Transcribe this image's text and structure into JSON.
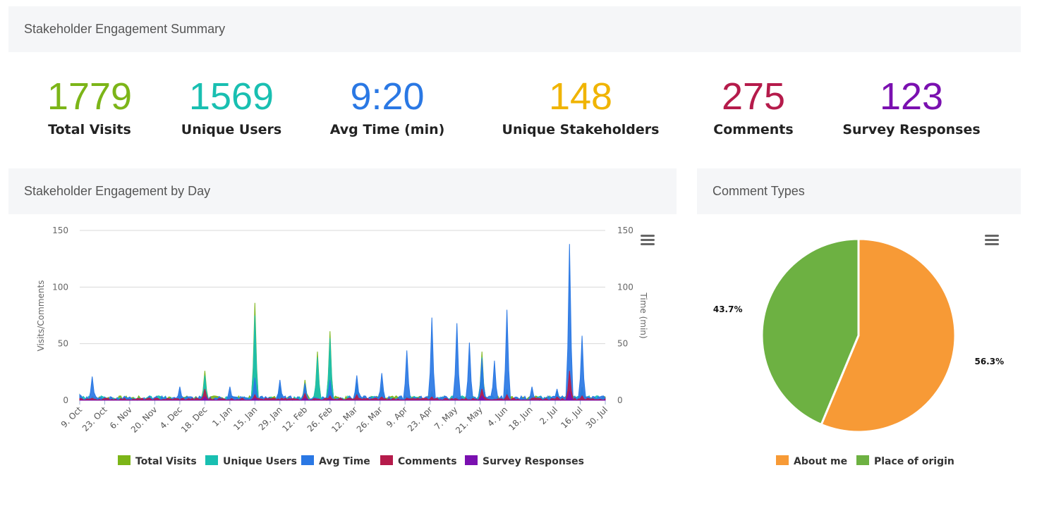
{
  "summary": {
    "title": "Stakeholder Engagement Summary",
    "stats": [
      {
        "value": "1779",
        "label": "Total Visits",
        "color": "#7cb518"
      },
      {
        "value": "1569",
        "label": "Unique Users",
        "color": "#19bfb1"
      },
      {
        "value": "9:20",
        "label": "Avg Time (min)",
        "color": "#2a78e4"
      },
      {
        "value": "148",
        "label": "Unique Stakeholders",
        "color": "#f0b400"
      },
      {
        "value": "275",
        "label": "Comments",
        "color": "#b51b4b"
      },
      {
        "value": "123",
        "label": "Survey Responses",
        "color": "#7a10b0"
      }
    ]
  },
  "engagement_panel": {
    "title": "Stakeholder Engagement by Day",
    "menu_icon": "hamburger-menu-icon"
  },
  "comment_panel": {
    "title": "Comment Types",
    "menu_icon": "hamburger-menu-icon"
  },
  "chart_data": [
    {
      "type": "area",
      "title": "",
      "xlabel": "",
      "ylabel": "Visits/Comments",
      "y2label": "Time (min)",
      "ylim": [
        0,
        150
      ],
      "y2lim": [
        0,
        150
      ],
      "yticks": [
        0,
        50,
        100,
        150
      ],
      "grid": true,
      "legend": "bottom",
      "x_tick_labels": [
        "9. Oct",
        "23. Oct",
        "6. Nov",
        "20. Nov",
        "4. Dec",
        "18. Dec",
        "1. Jan",
        "15. Jan",
        "29. Jan",
        "12. Feb",
        "26. Feb",
        "12. Mar",
        "26. Mar",
        "9. Apr",
        "23. Apr",
        "7. May",
        "21. May",
        "4. Jun",
        "18. Jun",
        "2. Jul",
        "16. Jul",
        "30. Jul"
      ],
      "series": [
        {
          "name": "Total Visits",
          "color": "#7cb518",
          "points": [
            [
              "9. Oct",
              5
            ],
            [
              "23. Oct",
              3
            ],
            [
              "18. Dec",
              26
            ],
            [
              "1. Jan",
              4
            ],
            [
              "15. Jan",
              86
            ],
            [
              "29. Jan",
              12
            ],
            [
              "12. Feb",
              18
            ],
            [
              "19. Feb",
              43
            ],
            [
              "26. Feb",
              61
            ],
            [
              "12. Mar",
              15
            ],
            [
              "26. Mar",
              12
            ],
            [
              "23. Apr",
              8
            ],
            [
              "21. May",
              43
            ],
            [
              "4. Jun",
              10
            ],
            [
              "2. Jul",
              8
            ],
            [
              "16. Jul",
              12
            ],
            [
              "30. Jul",
              6
            ]
          ]
        },
        {
          "name": "Unique Users",
          "color": "#19bfb1",
          "points": [
            [
              "9. Oct",
              4
            ],
            [
              "23. Oct",
              2
            ],
            [
              "18. Dec",
              22
            ],
            [
              "1. Jan",
              3
            ],
            [
              "15. Jan",
              75
            ],
            [
              "29. Jan",
              10
            ],
            [
              "12. Feb",
              15
            ],
            [
              "19. Feb",
              38
            ],
            [
              "26. Feb",
              55
            ],
            [
              "12. Mar",
              13
            ],
            [
              "26. Mar",
              10
            ],
            [
              "23. Apr",
              7
            ],
            [
              "21. May",
              38
            ],
            [
              "4. Jun",
              9
            ],
            [
              "2. Jul",
              7
            ],
            [
              "16. Jul",
              10
            ],
            [
              "30. Jul",
              5
            ]
          ]
        },
        {
          "name": "Avg Time",
          "color": "#2a78e4",
          "points": [
            [
              "9. Oct",
              5
            ],
            [
              "16. Oct",
              21
            ],
            [
              "4. Dec",
              12
            ],
            [
              "1. Jan",
              12
            ],
            [
              "15. Jan",
              20
            ],
            [
              "29. Jan",
              18
            ],
            [
              "12. Feb",
              15
            ],
            [
              "26. Feb",
              18
            ],
            [
              "12. Mar",
              22
            ],
            [
              "26. Mar",
              24
            ],
            [
              "9. Apr",
              44
            ],
            [
              "23. Apr",
              73
            ],
            [
              "7. May",
              68
            ],
            [
              "14. May",
              51
            ],
            [
              "21. May",
              37
            ],
            [
              "28. May",
              35
            ],
            [
              "4. Jun",
              80
            ],
            [
              "18. Jun",
              12
            ],
            [
              "2. Jul",
              10
            ],
            [
              "9. Jul",
              138
            ],
            [
              "16. Jul",
              57
            ],
            [
              "30. Jul",
              6
            ]
          ]
        },
        {
          "name": "Comments",
          "color": "#b51b4b",
          "points": [
            [
              "9. Oct",
              1
            ],
            [
              "18. Dec",
              10
            ],
            [
              "15. Jan",
              5
            ],
            [
              "12. Feb",
              6
            ],
            [
              "26. Feb",
              4
            ],
            [
              "12. Mar",
              5
            ],
            [
              "26. Mar",
              3
            ],
            [
              "23. Apr",
              3
            ],
            [
              "21. May",
              10
            ],
            [
              "4. Jun",
              5
            ],
            [
              "2. Jul",
              3
            ],
            [
              "9. Jul",
              26
            ],
            [
              "16. Jul",
              4
            ],
            [
              "30. Jul",
              2
            ]
          ]
        },
        {
          "name": "Survey Responses",
          "color": "#7a10b0",
          "points": [
            [
              "9. Oct",
              0
            ],
            [
              "18. Dec",
              3
            ],
            [
              "15. Jan",
              2
            ],
            [
              "12. Feb",
              2
            ],
            [
              "26. Feb",
              1
            ],
            [
              "21. May",
              4
            ],
            [
              "9. Jul",
              8
            ],
            [
              "30. Jul",
              1
            ]
          ]
        }
      ]
    },
    {
      "type": "pie",
      "title": "",
      "legend": "bottom",
      "series": [
        {
          "name": "Comment Types",
          "values": [
            56.3,
            43.7
          ]
        }
      ],
      "categories": [
        "About me",
        "Place of origin"
      ],
      "data_labels": [
        "56.3%",
        "43.7%"
      ],
      "colors": [
        "#f79a36",
        "#6db142"
      ]
    }
  ]
}
